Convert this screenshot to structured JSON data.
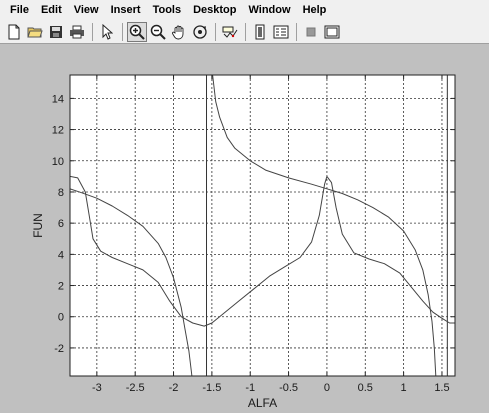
{
  "menubar": {
    "items": [
      "File",
      "Edit",
      "View",
      "Insert",
      "Tools",
      "Desktop",
      "Window",
      "Help"
    ]
  },
  "toolbar": {
    "buttons": [
      {
        "icon": "new-file-icon"
      },
      {
        "icon": "open-folder-icon"
      },
      {
        "icon": "save-icon"
      },
      {
        "icon": "print-icon"
      },
      {
        "icon": "pointer-icon"
      },
      {
        "icon": "zoom-in-icon",
        "pressed": true
      },
      {
        "icon": "zoom-out-icon"
      },
      {
        "icon": "pan-hand-icon"
      },
      {
        "icon": "rotate-3d-icon"
      },
      {
        "icon": "data-cursor-icon"
      },
      {
        "icon": "colorbar-icon"
      },
      {
        "icon": "legend-icon"
      },
      {
        "icon": "hide-plot-tools-icon"
      },
      {
        "icon": "show-plot-tools-icon"
      }
    ]
  },
  "chart_data": {
    "type": "line",
    "xlabel": "ALFA",
    "ylabel": "FUN",
    "xlim": [
      -3.35,
      1.67
    ],
    "ylim": [
      -3.8,
      15.5
    ],
    "xticks": [
      -3,
      -2.5,
      -2,
      -1.5,
      -1,
      -0.5,
      0,
      0.5,
      1,
      1.5
    ],
    "xtick_labels": [
      "-3",
      "-2.5",
      "-2",
      "-1.5",
      "-1",
      "-0.5",
      "0",
      "0.5",
      "1",
      "1.5"
    ],
    "yticks": [
      -2,
      0,
      2,
      4,
      6,
      8,
      10,
      12,
      14
    ],
    "ytick_labels": [
      "-2",
      "0",
      "2",
      "4",
      "6",
      "8",
      "10",
      "12",
      "14"
    ],
    "grid": true,
    "vertical_lines": [
      -1.57,
      1.57
    ],
    "series": [
      {
        "points": [
          [
            -3.35,
            8.2
          ],
          [
            -3.2,
            7.95
          ],
          [
            -3.0,
            7.6
          ],
          [
            -2.8,
            7.1
          ],
          [
            -2.6,
            6.5
          ],
          [
            -2.4,
            5.8
          ],
          [
            -2.2,
            4.7
          ],
          [
            -2.1,
            3.8
          ],
          [
            -2.0,
            2.5
          ],
          [
            -1.9,
            0.6
          ],
          [
            -1.85,
            -0.8
          ],
          [
            -1.8,
            -2.2
          ],
          [
            -1.76,
            -3.8
          ]
        ]
      },
      {
        "points": [
          [
            -1.49,
            15.5
          ],
          [
            -1.45,
            13.8
          ],
          [
            -1.4,
            12.8
          ],
          [
            -1.3,
            11.5
          ],
          [
            -1.2,
            10.8
          ],
          [
            -1.0,
            10.0
          ],
          [
            -0.8,
            9.4
          ],
          [
            -0.5,
            8.9
          ],
          [
            -0.2,
            8.5
          ],
          [
            0.0,
            8.2
          ],
          [
            0.2,
            7.9
          ],
          [
            0.4,
            7.5
          ],
          [
            0.6,
            7.0
          ],
          [
            0.8,
            6.4
          ],
          [
            1.0,
            5.5
          ],
          [
            1.15,
            4.3
          ],
          [
            1.25,
            3.0
          ],
          [
            1.32,
            1.4
          ],
          [
            1.37,
            -0.3
          ],
          [
            1.4,
            -2.0
          ],
          [
            1.42,
            -3.8
          ]
        ]
      },
      {
        "points": [
          [
            -3.35,
            9.0
          ],
          [
            -3.25,
            8.9
          ],
          [
            -3.15,
            8.0
          ],
          [
            -3.1,
            6.5
          ],
          [
            -3.05,
            5.0
          ],
          [
            -2.95,
            4.2
          ],
          [
            -2.8,
            3.8
          ],
          [
            -2.6,
            3.4
          ],
          [
            -2.4,
            3.0
          ],
          [
            -2.2,
            2.2
          ],
          [
            -2.05,
            1.0
          ],
          [
            -1.9,
            0.0
          ],
          [
            -1.75,
            -0.4
          ],
          [
            -1.6,
            -0.6
          ],
          [
            -1.5,
            -0.4
          ],
          [
            -1.35,
            0.2
          ],
          [
            -1.15,
            1.0
          ],
          [
            -0.95,
            1.8
          ],
          [
            -0.75,
            2.6
          ],
          [
            -0.55,
            3.2
          ],
          [
            -0.35,
            3.8
          ],
          [
            -0.2,
            4.8
          ],
          [
            -0.1,
            6.5
          ],
          [
            -0.03,
            8.5
          ],
          [
            0.0,
            9.0
          ],
          [
            0.06,
            8.6
          ],
          [
            0.12,
            7.0
          ],
          [
            0.2,
            5.3
          ],
          [
            0.35,
            4.1
          ],
          [
            0.55,
            3.7
          ],
          [
            0.75,
            3.4
          ],
          [
            0.95,
            2.8
          ],
          [
            1.1,
            1.9
          ],
          [
            1.25,
            1.0
          ],
          [
            1.38,
            0.3
          ],
          [
            1.5,
            -0.1
          ],
          [
            1.6,
            -0.4
          ],
          [
            1.67,
            -0.4
          ]
        ]
      }
    ]
  }
}
